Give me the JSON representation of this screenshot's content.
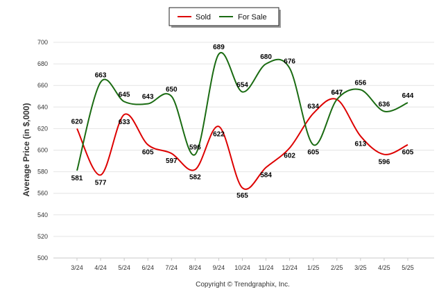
{
  "legend": {
    "sold_label": "Sold",
    "for_sale_label": "For Sale"
  },
  "footer": {
    "copyright": "Copyright © Trendgraphix, Inc."
  },
  "colors": {
    "sold": "#dd0000",
    "for_sale": "#1a6b12"
  },
  "chart_data": {
    "type": "line",
    "title": "",
    "xlabel": "",
    "ylabel": "Average Price (in $,000)",
    "ylim": [
      500,
      700
    ],
    "yticks": [
      500,
      520,
      540,
      560,
      580,
      600,
      620,
      640,
      660,
      680,
      700
    ],
    "grid": true,
    "legend_position": "top-center",
    "categories": [
      "3/24",
      "4/24",
      "5/24",
      "6/24",
      "7/24",
      "8/24",
      "9/24",
      "10/24",
      "11/24",
      "12/24",
      "1/25",
      "2/25",
      "3/25",
      "4/25",
      "5/25"
    ],
    "series": [
      {
        "name": "Sold",
        "values": [
          620,
          577,
          633,
          605,
          597,
          582,
          622,
          565,
          584,
          602,
          634,
          647,
          613,
          596,
          605
        ]
      },
      {
        "name": "For Sale",
        "values": [
          581,
          663,
          645,
          643,
          650,
          596,
          689,
          654,
          680,
          676,
          605,
          647,
          656,
          636,
          644
        ]
      }
    ]
  }
}
